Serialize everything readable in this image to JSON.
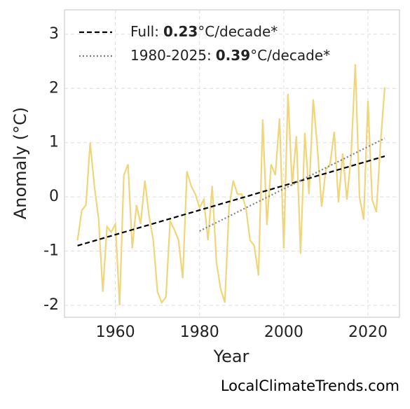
{
  "chart_data": {
    "type": "line",
    "ylabel": "Anomaly (°C)",
    "xlabel": "Year",
    "watermark": "LocalClimateTrends.com",
    "x": [
      1951,
      1952,
      1953,
      1954,
      1955,
      1956,
      1957,
      1958,
      1959,
      1960,
      1961,
      1962,
      1963,
      1964,
      1965,
      1966,
      1967,
      1968,
      1969,
      1970,
      1971,
      1972,
      1973,
      1974,
      1975,
      1976,
      1977,
      1978,
      1979,
      1980,
      1981,
      1982,
      1983,
      1984,
      1985,
      1986,
      1987,
      1988,
      1989,
      1990,
      1991,
      1992,
      1993,
      1994,
      1995,
      1996,
      1997,
      1998,
      1999,
      2000,
      2001,
      2002,
      2003,
      2004,
      2005,
      2006,
      2007,
      2008,
      2009,
      2010,
      2011,
      2012,
      2013,
      2014,
      2015,
      2016,
      2017,
      2018,
      2019,
      2020,
      2021,
      2022,
      2023,
      2024
    ],
    "series": [
      {
        "color": "#f0d57a",
        "values": [
          -0.8,
          -0.25,
          -0.15,
          1.0,
          0.2,
          -0.4,
          -1.75,
          -0.55,
          -0.65,
          -0.5,
          -2.0,
          0.4,
          0.6,
          -0.95,
          -0.15,
          -0.5,
          0.3,
          -0.35,
          -0.8,
          -1.75,
          -1.95,
          -1.85,
          -0.45,
          -0.6,
          -0.8,
          -1.5,
          0.47,
          0.2,
          0.05,
          -0.2,
          -0.05,
          -0.8,
          0.2,
          -1.2,
          -1.7,
          -1.95,
          -0.2,
          0.3,
          0.05,
          0.05,
          -0.2,
          -0.8,
          -0.9,
          -1.45,
          1.43,
          -0.52,
          0.6,
          0.4,
          1.45,
          -0.95,
          1.9,
          0.2,
          1.12,
          -1.05,
          1.18,
          0.05,
          1.8,
          0.9,
          -0.18,
          0.5,
          0.6,
          1.2,
          -0.1,
          0.8,
          -0.05,
          0.75,
          2.45,
          0.0,
          -0.42,
          1.77,
          -0.05,
          -0.28,
          1.0,
          2.02
        ]
      },
      {
        "name": "Full:",
        "rate": 0.23,
        "rate_unit": "°C/decade*",
        "color": "#000000",
        "dash": "dashed",
        "x": [
          1951,
          2024
        ],
        "values": [
          -0.9,
          0.75
        ]
      },
      {
        "name": "1980-2025:",
        "rate": 0.39,
        "rate_unit": "°C/decade*",
        "color": "#808080",
        "dash": "dotted",
        "x": [
          1980,
          2024
        ],
        "values": [
          -0.63,
          1.08
        ]
      }
    ],
    "xlim": [
      1947.9,
      2027.5
    ],
    "ylim": [
      -2.22,
      3.45
    ],
    "xticks": [
      1960,
      1980,
      2000,
      2020
    ],
    "yticks": [
      -2,
      -1,
      0,
      1,
      2,
      3
    ],
    "grid": true,
    "legend": "upper left"
  }
}
